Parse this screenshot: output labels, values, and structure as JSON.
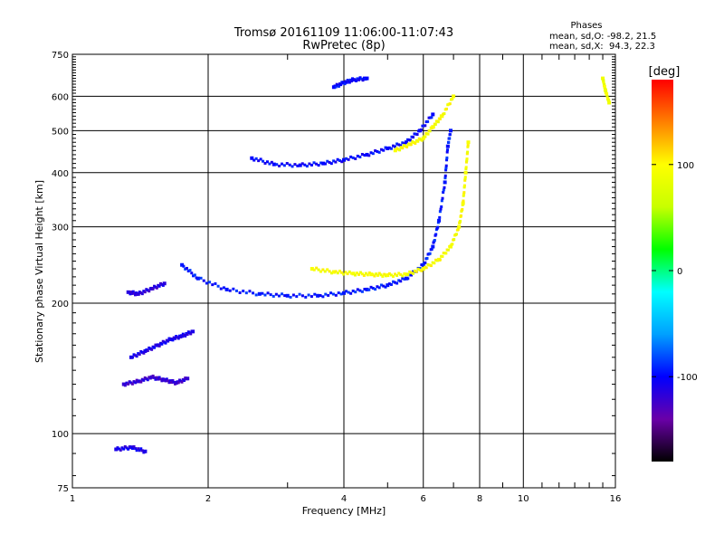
{
  "header": {
    "title_line1": "Tromsø 20161109 11:06:00-11:07:43",
    "title_line2": "RwPretec (8p)",
    "stats_title": "Phases",
    "stats_line1": "mean, sd,O: -98.2, 21.5",
    "stats_line2": "mean, sd,X:  94.3, 22.3"
  },
  "colorbar": {
    "unit_label": "[deg]",
    "tick_labels": [
      "100",
      "0",
      "-100"
    ],
    "tick_values": [
      100,
      0,
      -100
    ],
    "range": [
      -180,
      180
    ],
    "stops": [
      "#000000",
      "#6a00a8",
      "#0000ff",
      "#00a0ff",
      "#00ffff",
      "#00ff00",
      "#c8ff00",
      "#ffff00",
      "#ff8000",
      "#ff0000"
    ]
  },
  "chart_data": {
    "type": "scatter",
    "title": "Tromsø 20161109 11:06:00-11:07:43",
    "subtitle": "RwPretec (8p)",
    "xlabel": "Frequency [MHz]",
    "ylabel": "Stationary phase Virtual Height [km]",
    "xscale": "log",
    "yscale": "log",
    "xlim": [
      1,
      16
    ],
    "ylim": [
      75,
      750
    ],
    "x_ticks": [
      1,
      2,
      4,
      6,
      8,
      10,
      16
    ],
    "x_tick_labels": [
      "1",
      "2",
      "4",
      "6",
      "8",
      "10",
      "16"
    ],
    "y_ticks": [
      75,
      100,
      200,
      300,
      400,
      500,
      600,
      750
    ],
    "y_tick_labels": [
      "75",
      "100",
      "200",
      "300",
      "400",
      "500",
      "600",
      "750"
    ],
    "grid": true,
    "color_value": "phase [deg]",
    "traces": [
      {
        "x": [
          1.75,
          1.9,
          2.2,
          2.6,
          3.0,
          3.5,
          4.0,
          4.5,
          5.0,
          5.5,
          6.0,
          6.3,
          6.5,
          6.7,
          6.8,
          6.9
        ],
        "y": [
          245,
          228,
          215,
          210,
          208,
          208,
          211,
          215,
          220,
          228,
          245,
          270,
          310,
          380,
          460,
          500
        ],
        "phase": -95
      },
      {
        "x": [
          3.4,
          3.8,
          4.2,
          4.6,
          5.0,
          5.5,
          6.0,
          6.5,
          6.9,
          7.2,
          7.35,
          7.45,
          7.55
        ],
        "y": [
          240,
          236,
          234,
          233,
          232,
          233,
          240,
          252,
          270,
          300,
          340,
          400,
          470
        ],
        "phase": 95
      },
      {
        "x": [
          2.5,
          2.8,
          3.2,
          3.6,
          4.0,
          4.5,
          5.0,
          5.5,
          5.9,
          6.3
        ],
        "y": [
          432,
          418,
          416,
          420,
          428,
          440,
          455,
          470,
          500,
          545
        ],
        "phase": -100
      },
      {
        "x": [
          5.2,
          5.6,
          6.0,
          6.3,
          6.6,
          7.0
        ],
        "y": [
          450,
          465,
          480,
          510,
          540,
          600
        ],
        "phase": 95
      },
      {
        "x": [
          3.8,
          4.0,
          4.2,
          4.5
        ],
        "y": [
          630,
          645,
          655,
          660
        ],
        "phase": -100
      },
      {
        "x": [
          1.33,
          1.4,
          1.5,
          1.6
        ],
        "y": [
          212,
          210,
          216,
          222
        ],
        "phase": -115
      },
      {
        "x": [
          1.35,
          1.45,
          1.55,
          1.65,
          1.75,
          1.85
        ],
        "y": [
          150,
          155,
          160,
          165,
          168,
          172
        ],
        "phase": -110
      },
      {
        "x": [
          1.3,
          1.4,
          1.5,
          1.6,
          1.7,
          1.8
        ],
        "y": [
          130,
          132,
          135,
          133,
          131,
          134
        ],
        "phase": -120
      },
      {
        "x": [
          1.25,
          1.35,
          1.45
        ],
        "y": [
          92,
          93,
          91
        ],
        "phase": -110
      },
      {
        "x": [
          15.0,
          15.2,
          15.5
        ],
        "y": [
          660,
          620,
          580
        ],
        "phase": 90
      }
    ]
  }
}
